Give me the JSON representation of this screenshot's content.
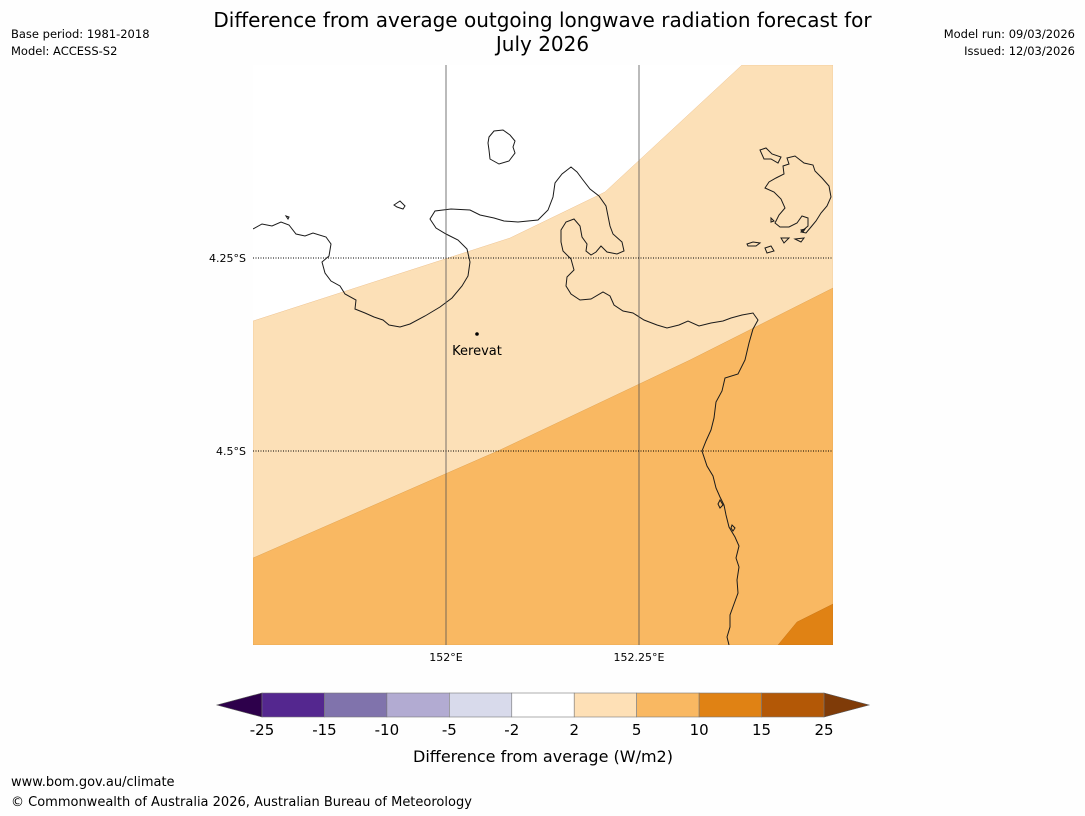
{
  "header": {
    "title_line1": "Difference from average outgoing longwave radiation forecast for",
    "title_line2": "July 2026",
    "base_period": "Base period: 1981-2018",
    "model": "Model: ACCESS-S2",
    "model_run": "Model run: 09/03/2026",
    "issued": "Issued: 12/03/2026"
  },
  "map": {
    "lat_labels": [
      "4.25°S",
      "4.5°S"
    ],
    "lon_labels": [
      "152°E",
      "152.25°E"
    ],
    "places": [
      {
        "name": "Kerevat"
      }
    ]
  },
  "colorbar": {
    "title": "Difference from average (W/m2)",
    "ticks": [
      "-25",
      "-15",
      "-10",
      "-5",
      "-2",
      "2",
      "5",
      "10",
      "15",
      "25"
    ],
    "colors": [
      "#54278f",
      "#8073ac",
      "#b2abd2",
      "#d8daeb",
      "#ffffff",
      "#fee0b6",
      "#f9b862",
      "#e08214",
      "#b35806"
    ],
    "under_color": "#2d004b",
    "over_color": "#7f3b08"
  },
  "footer": {
    "url": "www.bom.gov.au/climate",
    "copyright": "© Commonwealth of Australia 2026, Australian Bureau of Meteorology"
  }
}
